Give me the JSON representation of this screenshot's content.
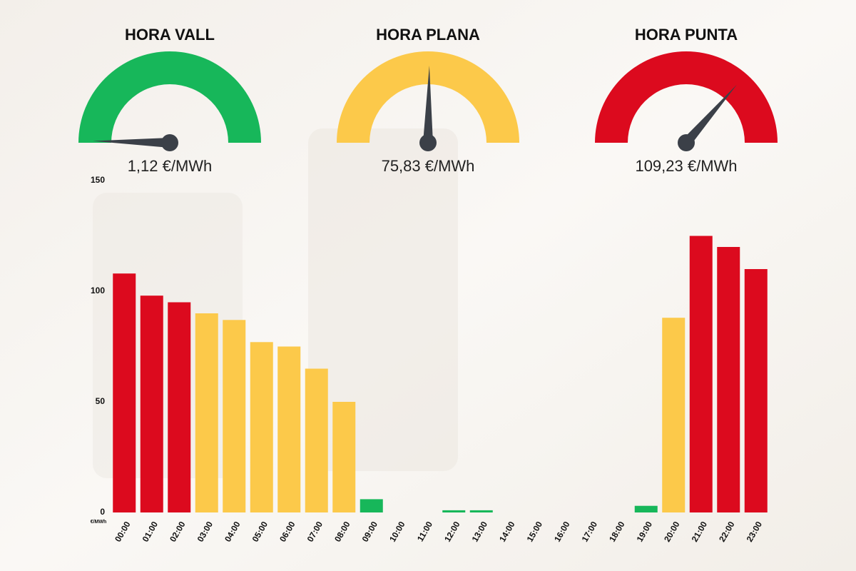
{
  "gauges": [
    {
      "title": "HORA VALL",
      "value": 1.12,
      "value_label": "1,12 €/MWh",
      "color": "#17b75a"
    },
    {
      "title": "HORA PLANA",
      "value": 75.83,
      "value_label": "75,83 €/MWh",
      "color": "#fcc94a"
    },
    {
      "title": "HORA PUNTA",
      "value": 109.23,
      "value_label": "109,23 €/MWh",
      "color": "#dc0a1e"
    }
  ],
  "chart_data": {
    "type": "bar",
    "y_label": "€/MWh",
    "categories": [
      "00:00",
      "01:00",
      "02:00",
      "03:00",
      "04:00",
      "05:00",
      "06:00",
      "07:00",
      "08:00",
      "09:00",
      "10:00",
      "11:00",
      "12:00",
      "13:00",
      "14:00",
      "15:00",
      "16:00",
      "17:00",
      "18:00",
      "19:00",
      "20:00",
      "21:00",
      "22:00",
      "23:00"
    ],
    "values": [
      108,
      98,
      95,
      90,
      87,
      77,
      75,
      65,
      50,
      6,
      0,
      0,
      1,
      1,
      0,
      0,
      0,
      0,
      0,
      3,
      88,
      125,
      120,
      110
    ],
    "colors": [
      "#dc0a1e",
      "#dc0a1e",
      "#dc0a1e",
      "#fcc94a",
      "#fcc94a",
      "#fcc94a",
      "#fcc94a",
      "#fcc94a",
      "#fcc94a",
      "#17b75a",
      "#17b75a",
      "#17b75a",
      "#17b75a",
      "#17b75a",
      "#17b75a",
      "#17b75a",
      "#17b75a",
      "#17b75a",
      "#17b75a",
      "#17b75a",
      "#fcc94a",
      "#dc0a1e",
      "#dc0a1e",
      "#dc0a1e"
    ],
    "ylim": [
      0,
      150
    ],
    "yticks": [
      0,
      50,
      100,
      150
    ]
  }
}
